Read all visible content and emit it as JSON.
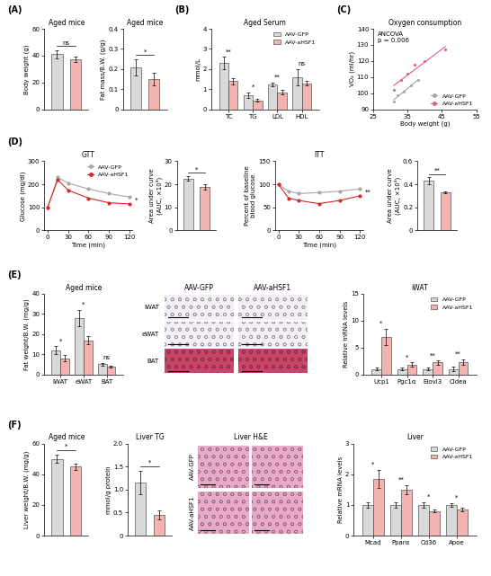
{
  "chart_data": [
    {
      "panel": "(A)",
      "type": "bar",
      "title": "Aged mice",
      "ylabel": "Body weight (g)",
      "categories": [
        null,
        null
      ],
      "values": [
        41,
        37
      ],
      "errors": [
        3.0,
        2.0
      ],
      "colors": [
        "#d9d9d9",
        "#f2b3b1"
      ],
      "significance": "ns",
      "ylim": [
        0,
        60
      ],
      "yticks": [
        0,
        20,
        40,
        60
      ]
    },
    {
      "type": "bar",
      "title": "Aged mice",
      "ylabel": "Fat mass/B.W. (g/g)",
      "categories": [
        null,
        null
      ],
      "values": [
        0.21,
        0.15
      ],
      "errors": [
        0.04,
        0.03
      ],
      "colors": [
        "#d9d9d9",
        "#f2b3b1"
      ],
      "significance": "*",
      "ylim": [
        0,
        0.4
      ],
      "yticks": [
        0,
        0.1,
        0.2,
        0.3,
        0.4
      ]
    },
    {
      "panel": "(B)",
      "type": "bar",
      "title": "Aged Serum",
      "ylabel": "mmol/L",
      "categories": [
        "TC",
        "TG",
        "LDL",
        "HDL"
      ],
      "series": [
        {
          "name": "AAV-GFP",
          "color": "#d9d9d9",
          "values": [
            2.3,
            0.7,
            1.25,
            1.6
          ],
          "errors": [
            0.3,
            0.15,
            0.1,
            0.4
          ]
        },
        {
          "name": "AAV-aHSF1",
          "color": "#f2b3b1",
          "values": [
            1.4,
            0.45,
            0.85,
            1.3
          ],
          "errors": [
            0.15,
            0.08,
            0.12,
            0.1
          ]
        }
      ],
      "significance": [
        "**",
        "*",
        "**",
        "ns"
      ],
      "legend": "upper right",
      "ylim": [
        0,
        4
      ],
      "yticks": [
        0,
        1,
        2,
        3,
        4
      ]
    },
    {
      "panel": "(C)",
      "type": "scatter",
      "title": "Oxygen consumption",
      "xlabel": "Body weight (g)",
      "ylabel": "VO₂ (ml/hr)",
      "annotation": "ANCOVA\np = 0.006",
      "series": [
        {
          "name": "AAV-GFP",
          "color": "#a6a6a6",
          "marker": "o",
          "x": [
            31,
            32,
            34,
            36,
            38
          ],
          "values": [
            95,
            99,
            101,
            105,
            108
          ]
        },
        {
          "name": "AAV-aHSF1",
          "color": "#e0607e",
          "marker": "o",
          "x": [
            31,
            33,
            35,
            37,
            40,
            46
          ],
          "values": [
            102,
            108,
            112,
            118,
            120,
            127
          ]
        }
      ],
      "legend": "lower right",
      "xlim": [
        25,
        55
      ],
      "xticks": [
        25,
        35,
        45,
        55
      ],
      "ylim": [
        90,
        140
      ],
      "yticks": [
        90,
        100,
        110,
        120,
        130,
        140
      ]
    },
    {
      "panel": "(D)",
      "type": "line",
      "title": "GTT",
      "xlabel": "Time (min)",
      "ylabel": "Glucose (mg/dl)",
      "x": [
        0,
        15,
        30,
        60,
        90,
        120
      ],
      "series": [
        {
          "name": "AAV-GFP",
          "color": "#a6a6a6",
          "marker": "o",
          "values": [
            100,
            230,
            205,
            180,
            160,
            145
          ]
        },
        {
          "name": "AAV-aHSF1",
          "color": "#d62728",
          "marker": "o",
          "values": [
            100,
            220,
            175,
            140,
            120,
            115
          ]
        }
      ],
      "significance": "*",
      "legend": "upper right",
      "xlim": [
        -5,
        125
      ],
      "xticks": [
        0,
        30,
        60,
        90,
        120
      ],
      "ylim": [
        0,
        300
      ],
      "yticks": [
        0,
        100,
        200,
        300
      ]
    },
    {
      "type": "bar",
      "ylabel": "Area under curve\n(AUC, ×10³)",
      "categories": [
        null,
        null
      ],
      "values": [
        22.5,
        19
      ],
      "errors": [
        1.0,
        1.2
      ],
      "colors": [
        "#d9d9d9",
        "#f2b3b1"
      ],
      "significance": "*",
      "ylim": [
        0,
        30
      ],
      "yticks": [
        0,
        10,
        20,
        30
      ]
    },
    {
      "type": "line",
      "title": "ITT",
      "xlabel": "Time (min)",
      "ylabel": "Percent of baseline\nblood glucose",
      "x": [
        0,
        15,
        30,
        60,
        90,
        120
      ],
      "series": [
        {
          "name": "AAV-GFP",
          "color": "#a6a6a6",
          "marker": "o",
          "values": [
            100,
            85,
            80,
            82,
            85,
            90
          ]
        },
        {
          "name": "AAV-aHSF1",
          "color": "#d62728",
          "marker": "o",
          "values": [
            100,
            70,
            65,
            58,
            65,
            75
          ]
        }
      ],
      "significance": "**",
      "xlim": [
        -5,
        125
      ],
      "xticks": [
        0,
        30,
        60,
        90,
        120
      ],
      "ylim": [
        0,
        150
      ],
      "yticks": [
        0,
        50,
        100,
        150
      ]
    },
    {
      "type": "bar",
      "ylabel": "Area under curve\n(AUC, ×10³)",
      "categories": [
        null,
        null
      ],
      "values": [
        0.43,
        0.33
      ],
      "errors": [
        0.03,
        0.01
      ],
      "colors": [
        "#d9d9d9",
        "#f2b3b1"
      ],
      "significance": "**",
      "ylim": [
        0,
        0.6
      ],
      "yticks": [
        0,
        0.2,
        0.4,
        0.6
      ]
    },
    {
      "panel": "(E)",
      "type": "bar",
      "title": "Aged mice",
      "ylabel": "Fat weight/B.W. (mg/g)",
      "categories": [
        "iWAT",
        "eWAT",
        "BAT"
      ],
      "series": [
        {
          "name": "AAV-GFP",
          "color": "#d9d9d9",
          "values": [
            12,
            28,
            5
          ],
          "errors": [
            2,
            4,
            0.8
          ]
        },
        {
          "name": "AAV-aHSF1",
          "color": "#f2b3b1",
          "values": [
            8,
            17,
            4
          ],
          "errors": [
            1.5,
            2,
            0.5
          ]
        }
      ],
      "significance": [
        "*",
        "*",
        "ns"
      ],
      "ylim": [
        0,
        40
      ],
      "yticks": [
        0,
        10,
        20,
        30,
        40
      ]
    },
    {
      "type": "image",
      "column_labels": [
        "AAV-GFP",
        "AAV-aHSF1"
      ],
      "row_labels": [
        "iWAT",
        "eWAT",
        "BAT"
      ],
      "colors": [
        "#f4eef7",
        "#f4eef7",
        "#c9456a"
      ]
    },
    {
      "type": "bar",
      "title": "iWAT",
      "ylabel": "Relative mRNA levels",
      "categories": [
        "Ucp1",
        "Pgc1α",
        "Elovl3",
        "Cidea"
      ],
      "series": [
        {
          "name": "AAV-GFP",
          "color": "#d9d9d9",
          "values": [
            1,
            1,
            1,
            1
          ],
          "errors": [
            0.3,
            0.2,
            0.3,
            0.4
          ]
        },
        {
          "name": "AAV-aHSF1",
          "color": "#f2b3b1",
          "values": [
            7,
            1.8,
            2.2,
            2.3
          ],
          "errors": [
            1.5,
            0.4,
            0.4,
            0.5
          ]
        }
      ],
      "significance": [
        "*",
        "*",
        "**",
        "**"
      ],
      "legend": "upper right",
      "ylim": [
        0,
        15
      ],
      "yticks": [
        0,
        5,
        10,
        15
      ]
    },
    {
      "panel": "(F)",
      "type": "bar",
      "title": "Aged mice",
      "ylabel": "Liver weight/B.W. (mg/g)",
      "categories": [
        null,
        null
      ],
      "values": [
        50,
        45
      ],
      "errors": [
        2.5,
        2.0
      ],
      "colors": [
        "#d9d9d9",
        "#f2b3b1"
      ],
      "significance": "*",
      "ylim": [
        0,
        60
      ],
      "yticks": [
        0,
        20,
        40,
        60
      ]
    },
    {
      "type": "bar",
      "title": "Liver TG",
      "ylabel": "mmol/g protein",
      "categories": [
        null,
        null
      ],
      "values": [
        1.15,
        0.45
      ],
      "errors": [
        0.25,
        0.1
      ],
      "colors": [
        "#d9d9d9",
        "#f2b3b1"
      ],
      "significance": "*",
      "ylim": [
        0,
        2
      ],
      "yticks": [
        0,
        0.5,
        {
          "value": 1,
          "label": "1.0"
        },
        1.5,
        {
          "value": 2,
          "label": "2.0"
        }
      ]
    },
    {
      "type": "image",
      "title": "Liver H&E",
      "row_labels": [
        "AAV-GFP",
        "AAV-aHSF1"
      ],
      "colors": [
        "#e9a9c9",
        "#e9a9c9"
      ]
    },
    {
      "type": "bar",
      "title": "Liver",
      "ylabel": "Relative mRNA levels",
      "categories": [
        "Mcad",
        "Pparα",
        "Cd36",
        "Apoe"
      ],
      "series": [
        {
          "name": "AAV-GFP",
          "color": "#d9d9d9",
          "values": [
            1,
            1,
            1,
            1
          ],
          "errors": [
            0.1,
            0.1,
            0.08,
            0.05
          ]
        },
        {
          "name": "AAV-aHSF1",
          "color": "#f2b3b1",
          "values": [
            1.85,
            1.5,
            0.8,
            0.85
          ],
          "errors": [
            0.3,
            0.15,
            0.05,
            0.06
          ]
        }
      ],
      "significance": [
        "*",
        "**",
        "*",
        "*"
      ],
      "legend": "upper right",
      "ylim": [
        0,
        3
      ],
      "yticks": [
        0,
        1,
        2,
        3
      ]
    }
  ]
}
